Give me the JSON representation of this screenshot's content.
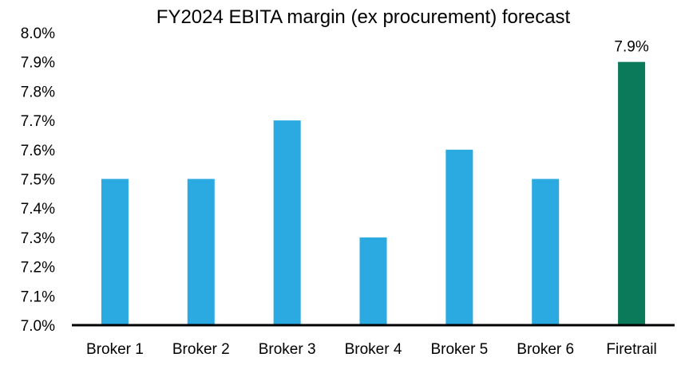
{
  "chart_data": {
    "type": "bar",
    "title": "FY2024 EBITA margin (ex procurement) forecast",
    "xlabel": "",
    "ylabel": "",
    "categories": [
      "Broker 1",
      "Broker 2",
      "Broker 3",
      "Broker 4",
      "Broker 5",
      "Broker 6",
      "Firetrail"
    ],
    "values": [
      7.5,
      7.5,
      7.7,
      7.3,
      7.6,
      7.5,
      7.9
    ],
    "ylim": [
      7.0,
      8.0
    ],
    "yticks": [
      7.0,
      7.1,
      7.2,
      7.3,
      7.4,
      7.5,
      7.6,
      7.7,
      7.8,
      7.9,
      8.0
    ],
    "ytick_labels": [
      "7.0%",
      "7.1%",
      "7.2%",
      "7.3%",
      "7.4%",
      "7.5%",
      "7.6%",
      "7.7%",
      "7.8%",
      "7.9%",
      "8.0%"
    ],
    "data_labels": [
      {
        "category": "Firetrail",
        "text": "7.9%"
      }
    ],
    "grid": false,
    "legend": "none",
    "colors": {
      "broker": "#2ba9e1",
      "firetrail": "#0b7a5a",
      "axis": "#000000"
    }
  }
}
